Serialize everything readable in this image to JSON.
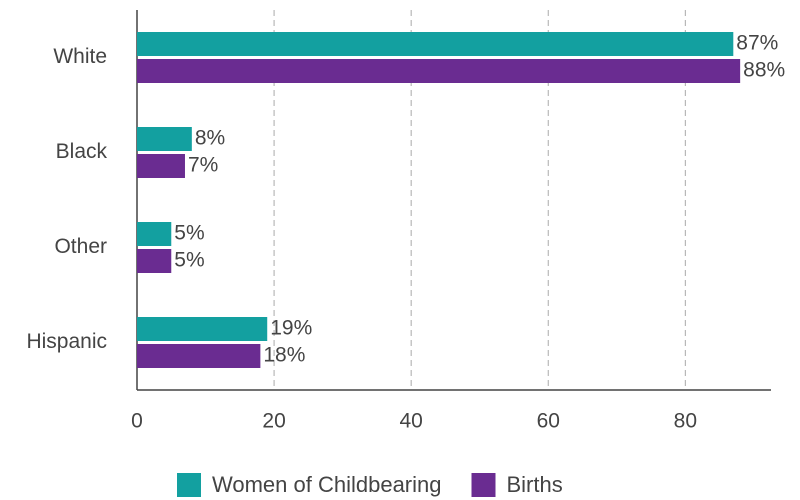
{
  "chart_data": {
    "type": "bar",
    "orientation": "horizontal",
    "categories": [
      "White",
      "Black",
      "Other",
      "Hispanic"
    ],
    "series": [
      {
        "name": "Women of Childbearing",
        "color": "#13a0a0",
        "values": [
          87,
          8,
          5,
          19
        ],
        "value_labels": [
          "87%",
          "8%",
          "5%",
          "19%"
        ]
      },
      {
        "name": "Births",
        "color": "#6a2c91",
        "values": [
          88,
          7,
          5,
          18
        ],
        "value_labels": [
          "88%",
          "7%",
          "5%",
          "18%"
        ]
      }
    ],
    "xlim": [
      0,
      92.5
    ],
    "xticks": [
      0,
      20,
      40,
      60,
      80
    ],
    "grid": true,
    "legend": "bottom"
  }
}
